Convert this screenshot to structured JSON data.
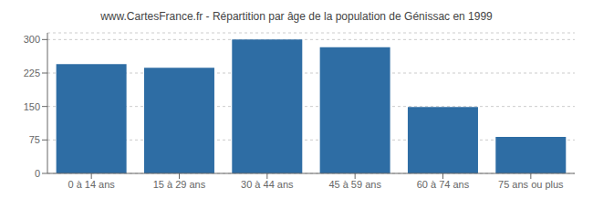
{
  "chart_data": {
    "type": "bar",
    "title": "www.CartesFrance.fr - Répartition par âge de la population de Génissac en 1999",
    "categories": [
      "0 à 14 ans",
      "15 à 29 ans",
      "30 à 44 ans",
      "45 à 59 ans",
      "60 à 74 ans",
      "75 ans ou plus"
    ],
    "values": [
      245,
      237,
      300,
      283,
      149,
      82
    ],
    "color": "#2e6da4",
    "ylim": [
      0,
      315
    ],
    "yticks": [
      0,
      75,
      150,
      225,
      300
    ],
    "grid": true
  }
}
